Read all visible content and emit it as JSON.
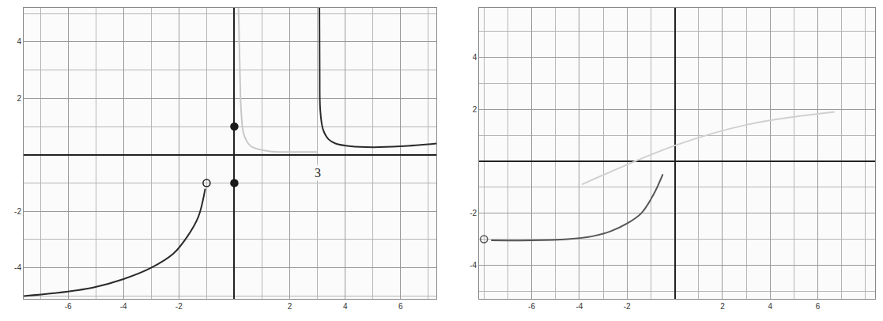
{
  "chart_data": [
    {
      "type": "line",
      "xlim": [
        -7.6,
        7.3
      ],
      "ylim": [
        -5.1,
        5.2
      ],
      "xticks": [
        -6,
        -4,
        -2,
        2,
        4,
        6
      ],
      "yticks": [
        -4,
        -2,
        2,
        4
      ],
      "grid": true,
      "series": [
        {
          "type": "line",
          "color": "#2b2b2b",
          "line_style": "solid",
          "x": [
            3.07,
            3.08,
            3.1,
            3.2,
            3.4,
            3.65,
            4.2,
            5.0,
            6.0,
            7.3
          ],
          "values": [
            5.2,
            2.9,
            1.6,
            0.9,
            0.55,
            0.4,
            0.3,
            0.27,
            0.3,
            0.4
          ]
        },
        {
          "type": "line",
          "color": "#2b2b2b",
          "line_style": "solid",
          "x": [
            -7.6,
            -6.5,
            -5.1,
            -4.0,
            -3.0,
            -2.2,
            -1.7,
            -1.3,
            -1.05
          ],
          "values": [
            -5.0,
            -4.9,
            -4.7,
            -4.4,
            -4.0,
            -3.5,
            -2.9,
            -2.2,
            -1.2
          ]
        },
        {
          "type": "line",
          "color": "#c8c8c8",
          "line_style": "solid",
          "x": [
            0.15,
            0.2,
            0.25,
            0.35,
            0.6,
            1.25,
            2.0,
            3.0
          ],
          "values": [
            5.2,
            3.0,
            1.5,
            0.7,
            0.3,
            0.13,
            0.1,
            0.1
          ]
        },
        {
          "type": "scatter",
          "color": "#1a1a1a",
          "marker": "circle",
          "x": [
            0,
            0
          ],
          "values": [
            1,
            -1
          ]
        },
        {
          "type": "scatter",
          "color": "#1a1a1a",
          "marker": "circle-open",
          "x": [
            -1
          ],
          "values": [
            -1
          ]
        }
      ],
      "annotations": [
        {
          "text": "3",
          "x": 3,
          "y": -0.35
        }
      ]
    },
    {
      "type": "line",
      "xlim": [
        -8.2,
        8.4
      ],
      "ylim": [
        -5.3,
        5.9
      ],
      "xticks": [
        -6,
        -4,
        -2,
        2,
        4,
        6
      ],
      "yticks": [
        -4,
        -2,
        2,
        4
      ],
      "grid": true,
      "series": [
        {
          "type": "line",
          "color": "#555555",
          "line_style": "solid",
          "x": [
            -7.7,
            -6.0,
            -4.5,
            -3.5,
            -2.7,
            -2.0,
            -1.4,
            -0.9,
            -0.5
          ],
          "values": [
            -3.05,
            -3.05,
            -3.0,
            -2.9,
            -2.7,
            -2.4,
            -2.0,
            -1.3,
            -0.5
          ]
        },
        {
          "type": "line",
          "color": "#d0d0d0",
          "line_style": "solid",
          "x": [
            -3.9,
            0.0,
            3.0,
            6.7
          ],
          "values": [
            -0.9,
            0.6,
            1.4,
            1.9
          ]
        },
        {
          "type": "scatter",
          "color": "#555555",
          "marker": "circle-open",
          "x": [
            -8.0
          ],
          "values": [
            -3.0
          ]
        }
      ]
    }
  ]
}
